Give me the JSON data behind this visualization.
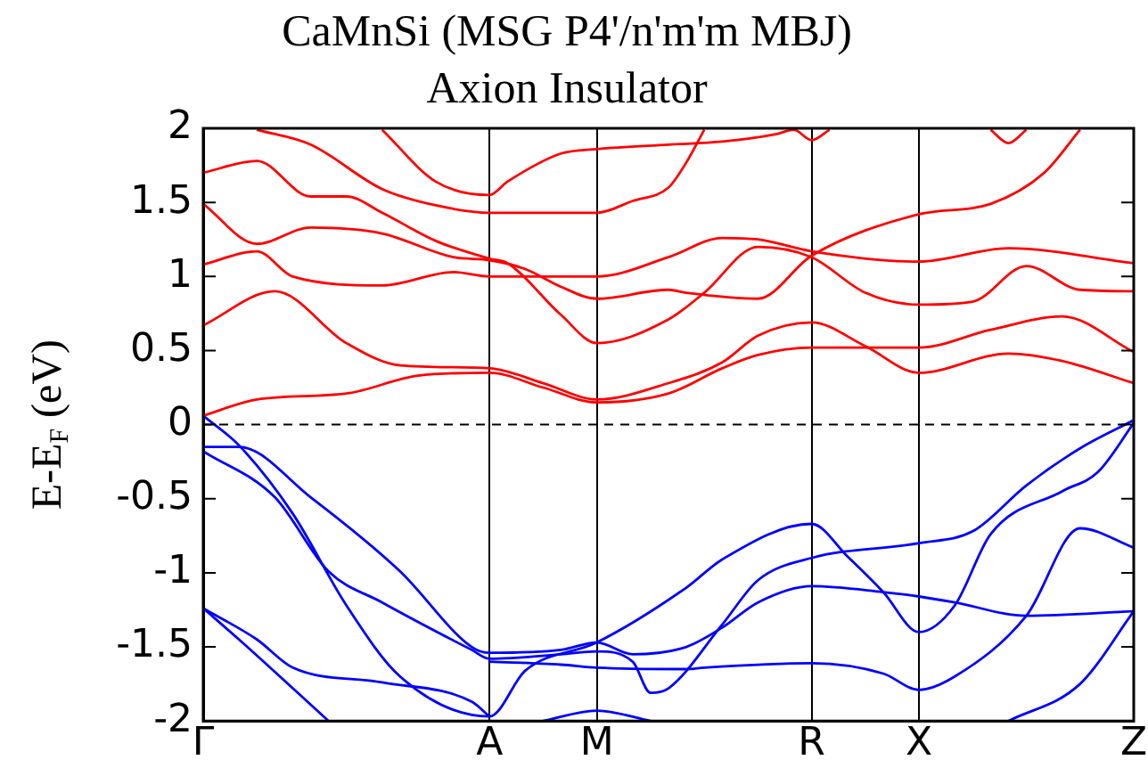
{
  "chart_data": {
    "type": "line",
    "title": "CaMnSi (MSG P4'/n'm'm MBJ)",
    "subtitle": "Axion Insulator",
    "ylabel": "E-E$_{F}$ (eV)",
    "categories": [
      "Γ",
      null,
      null,
      null,
      null,
      null,
      null,
      null,
      null,
      null,
      null,
      null,
      null,
      null,
      null,
      null,
      "A",
      null,
      null,
      null,
      null,
      null,
      "M",
      null,
      null,
      null,
      null,
      null,
      null,
      null,
      null,
      null,
      null,
      null,
      "R",
      null,
      null,
      null,
      null,
      null,
      "X",
      null,
      null,
      null,
      null,
      null,
      null,
      null,
      null,
      null,
      null,
      null,
      "Z"
    ],
    "ylim": [
      -2,
      2
    ],
    "yticks": [
      -2,
      -1.5,
      -1,
      -0.5,
      0,
      0.5,
      1,
      1.5,
      2
    ],
    "grid": "x",
    "legend": false,
    "marker": "none",
    "line_style": "solid",
    "ref_lines": [
      {
        "axis": "y",
        "value": 0,
        "color": "#000000",
        "line_style": "dashed"
      }
    ],
    "series": [
      {
        "color": "#ff0000",
        "values": [
          0.06,
          null,
          null,
          0.17,
          null,
          null,
          null,
          null,
          0.21,
          null,
          null,
          null,
          0.33,
          null,
          null,
          null,
          0.35,
          null,
          null,
          0.25,
          null,
          null,
          0.15,
          null,
          null,
          null,
          0.21,
          null,
          null,
          0.38,
          null,
          0.47,
          null,
          null,
          0.52,
          null,
          null,
          null,
          null,
          null,
          0.52,
          null,
          null,
          null,
          0.64,
          null,
          null,
          null,
          0.73,
          null,
          null,
          null,
          0.49
        ]
      },
      {
        "color": "#ff0000",
        "values": [
          0.67,
          null,
          null,
          null,
          0.9,
          null,
          null,
          null,
          0.55,
          null,
          null,
          0.4,
          null,
          null,
          null,
          null,
          0.38,
          null,
          null,
          0.28,
          null,
          null,
          0.17,
          null,
          null,
          null,
          0.28,
          null,
          null,
          0.42,
          null,
          0.6,
          null,
          null,
          0.69,
          null,
          null,
          0.53,
          null,
          null,
          0.35,
          null,
          null,
          null,
          null,
          0.48,
          null,
          null,
          0.43,
          null,
          null,
          null,
          0.28
        ]
      },
      {
        "color": "#ff0000",
        "values": [
          1.08,
          null,
          null,
          1.17,
          null,
          1.0,
          null,
          null,
          null,
          null,
          0.94,
          null,
          null,
          null,
          1.03,
          null,
          1.0,
          null,
          null,
          null,
          null,
          null,
          1.0,
          null,
          null,
          null,
          1.13,
          null,
          null,
          1.26,
          null,
          1.25,
          null,
          null,
          1.17,
          null,
          null,
          null,
          null,
          null,
          1.1,
          null,
          null,
          null,
          null,
          1.19,
          null,
          null,
          null,
          null,
          null,
          null,
          1.09
        ]
      },
      {
        "color": "#ff0000",
        "values": [
          1.49,
          null,
          null,
          1.22,
          null,
          null,
          1.33,
          null,
          null,
          null,
          1.29,
          null,
          null,
          null,
          1.13,
          null,
          1.11,
          null,
          1.05,
          null,
          0.93,
          null,
          0.85,
          null,
          null,
          null,
          0.91,
          0.89,
          null,
          null,
          null,
          0.85,
          null,
          null,
          1.14,
          null,
          null,
          null,
          null,
          null,
          1.42,
          null,
          null,
          null,
          1.49,
          null,
          null,
          1.7,
          null,
          1.99,
          null,
          null,
          null
        ]
      },
      {
        "color": "#ff0000",
        "values": [
          1.7,
          null,
          null,
          1.78,
          null,
          null,
          1.54,
          null,
          1.54,
          null,
          1.43,
          null,
          null,
          1.24,
          null,
          null,
          1.12,
          1.09,
          null,
          null,
          0.74,
          null,
          0.55,
          null,
          null,
          null,
          0.71,
          null,
          0.89,
          null,
          null,
          1.2,
          null,
          null,
          1.13,
          null,
          null,
          0.89,
          null,
          null,
          0.81,
          null,
          null,
          0.83,
          null,
          null,
          1.07,
          null,
          null,
          0.91,
          null,
          null,
          0.9
        ]
      },
      {
        "color": "#ff0000",
        "values": [
          null,
          null,
          null,
          1.99,
          null,
          null,
          1.89,
          null,
          null,
          null,
          1.59,
          null,
          null,
          1.48,
          null,
          null,
          1.43,
          null,
          null,
          null,
          null,
          null,
          1.43,
          null,
          1.51,
          null,
          1.6,
          1.77,
          1.99,
          null,
          null,
          null,
          null,
          null,
          null,
          null,
          null,
          null,
          null,
          null,
          null,
          null,
          null,
          null,
          null,
          null,
          null,
          null,
          null,
          null,
          null,
          null,
          null
        ]
      },
      {
        "color": "#ff0000",
        "values": [
          null,
          null,
          null,
          null,
          null,
          null,
          null,
          null,
          null,
          null,
          1.99,
          null,
          null,
          1.64,
          null,
          null,
          1.55,
          1.64,
          null,
          null,
          1.83,
          null,
          1.86,
          null,
          null,
          null,
          1.89,
          null,
          null,
          1.91,
          null,
          null,
          1.96,
          1.99,
          1.92,
          1.99,
          null,
          null,
          null,
          null,
          null,
          null,
          null,
          null,
          null,
          null,
          null,
          null,
          null,
          null,
          null,
          null,
          null
        ]
      },
      {
        "color": "#ff0000",
        "values": [
          null,
          null,
          null,
          null,
          null,
          null,
          null,
          null,
          null,
          null,
          null,
          null,
          null,
          null,
          null,
          null,
          null,
          null,
          null,
          null,
          null,
          null,
          null,
          null,
          null,
          null,
          null,
          null,
          null,
          null,
          null,
          null,
          null,
          null,
          null,
          null,
          null,
          null,
          null,
          null,
          null,
          null,
          null,
          null,
          1.99,
          1.9,
          1.99,
          null,
          null,
          null,
          null,
          null,
          null
        ]
      },
      {
        "color": "#0000ff",
        "values": [
          0.06,
          null,
          -0.14,
          null,
          null,
          -0.6,
          null,
          null,
          -1.22,
          null,
          null,
          -1.7,
          null,
          null,
          null,
          null,
          -1.97,
          null,
          -1.66,
          null,
          null,
          null,
          -1.47,
          null,
          null,
          null,
          null,
          -1.1,
          null,
          -0.91,
          null,
          null,
          null,
          null,
          -0.67,
          null,
          -0.89,
          null,
          -1.13,
          null,
          -1.4,
          null,
          -1.22,
          null,
          -0.74,
          null,
          null,
          null,
          -0.45,
          null,
          -0.32,
          null,
          0.01
        ]
      },
      {
        "color": "#0000ff",
        "values": [
          -0.15,
          null,
          -0.15,
          null,
          null,
          null,
          -0.49,
          null,
          null,
          null,
          null,
          -0.99,
          null,
          null,
          null,
          -1.5,
          -1.54,
          null,
          null,
          null,
          -1.52,
          null,
          -1.47,
          null,
          -1.55,
          null,
          null,
          -1.5,
          null,
          -1.37,
          null,
          -1.2,
          null,
          null,
          -1.09,
          null,
          null,
          null,
          -1.13,
          null,
          -1.16,
          null,
          -1.2,
          null,
          null,
          null,
          -1.29,
          null,
          null,
          null,
          null,
          null,
          -1.26
        ]
      },
      {
        "color": "#0000ff",
        "values": [
          -0.18,
          null,
          null,
          null,
          -0.49,
          null,
          null,
          -0.99,
          null,
          null,
          -1.2,
          null,
          null,
          null,
          null,
          -1.52,
          -1.58,
          null,
          null,
          null,
          -1.55,
          null,
          -1.53,
          null,
          -1.6,
          -1.81,
          -1.78,
          null,
          null,
          -1.35,
          null,
          -1.05,
          null,
          null,
          -0.9,
          null,
          null,
          null,
          null,
          null,
          -0.8,
          null,
          null,
          -0.72,
          null,
          null,
          -0.41,
          null,
          null,
          -0.16,
          null,
          null,
          0.03
        ]
      },
      {
        "color": "#0000ff",
        "values": [
          null,
          null,
          null,
          null,
          null,
          null,
          null,
          null,
          null,
          null,
          null,
          null,
          null,
          null,
          null,
          null,
          -1.6,
          null,
          null,
          null,
          -1.62,
          null,
          -1.64,
          null,
          null,
          null,
          null,
          -1.65,
          -1.64,
          null,
          null,
          null,
          null,
          null,
          -1.61,
          null,
          null,
          null,
          -1.68,
          null,
          -1.79,
          null,
          -1.7,
          null,
          null,
          null,
          -1.29,
          null,
          null,
          -0.7,
          null,
          null,
          -0.83
        ]
      },
      {
        "color": "#0000ff",
        "values": [
          -1.24,
          null,
          null,
          -1.45,
          null,
          -1.64,
          null,
          null,
          null,
          null,
          -1.74,
          null,
          null,
          null,
          null,
          -1.87,
          -1.97,
          null,
          null,
          null,
          null,
          null,
          null,
          null,
          null,
          null,
          null,
          null,
          null,
          null,
          null,
          null,
          null,
          null,
          null,
          null,
          null,
          null,
          null,
          null,
          null,
          null,
          null,
          null,
          null,
          null,
          null,
          null,
          null,
          null,
          null,
          null,
          null
        ]
      },
      {
        "color": "#0000ff",
        "values": [
          -1.24,
          null,
          -1.45,
          null,
          null,
          null,
          null,
          -2.0,
          null,
          null,
          null,
          null,
          null,
          null,
          null,
          null,
          null,
          null,
          null,
          null,
          null,
          null,
          null,
          null,
          null,
          null,
          null,
          null,
          null,
          null,
          null,
          null,
          null,
          null,
          null,
          null,
          null,
          null,
          null,
          null,
          null,
          null,
          null,
          null,
          null,
          null,
          null,
          null,
          null,
          null,
          null,
          null,
          null
        ]
      },
      {
        "color": "#0000ff",
        "values": [
          null,
          null,
          null,
          null,
          null,
          null,
          null,
          null,
          null,
          null,
          null,
          null,
          null,
          null,
          null,
          null,
          null,
          null,
          null,
          -2.0,
          null,
          null,
          -1.93,
          null,
          null,
          -2.0,
          null,
          null,
          null,
          null,
          null,
          null,
          null,
          null,
          null,
          null,
          null,
          null,
          null,
          null,
          null,
          null,
          null,
          null,
          null,
          null,
          null,
          null,
          null,
          null,
          null,
          null,
          null
        ]
      },
      {
        "color": "#0000ff",
        "values": [
          null,
          null,
          null,
          null,
          null,
          null,
          null,
          null,
          null,
          null,
          null,
          null,
          null,
          null,
          null,
          null,
          null,
          null,
          null,
          null,
          null,
          null,
          null,
          null,
          null,
          null,
          null,
          null,
          null,
          null,
          null,
          null,
          null,
          null,
          null,
          null,
          null,
          null,
          null,
          null,
          null,
          null,
          null,
          null,
          null,
          -2.0,
          null,
          null,
          null,
          -1.75,
          null,
          null,
          -1.26
        ]
      }
    ]
  }
}
